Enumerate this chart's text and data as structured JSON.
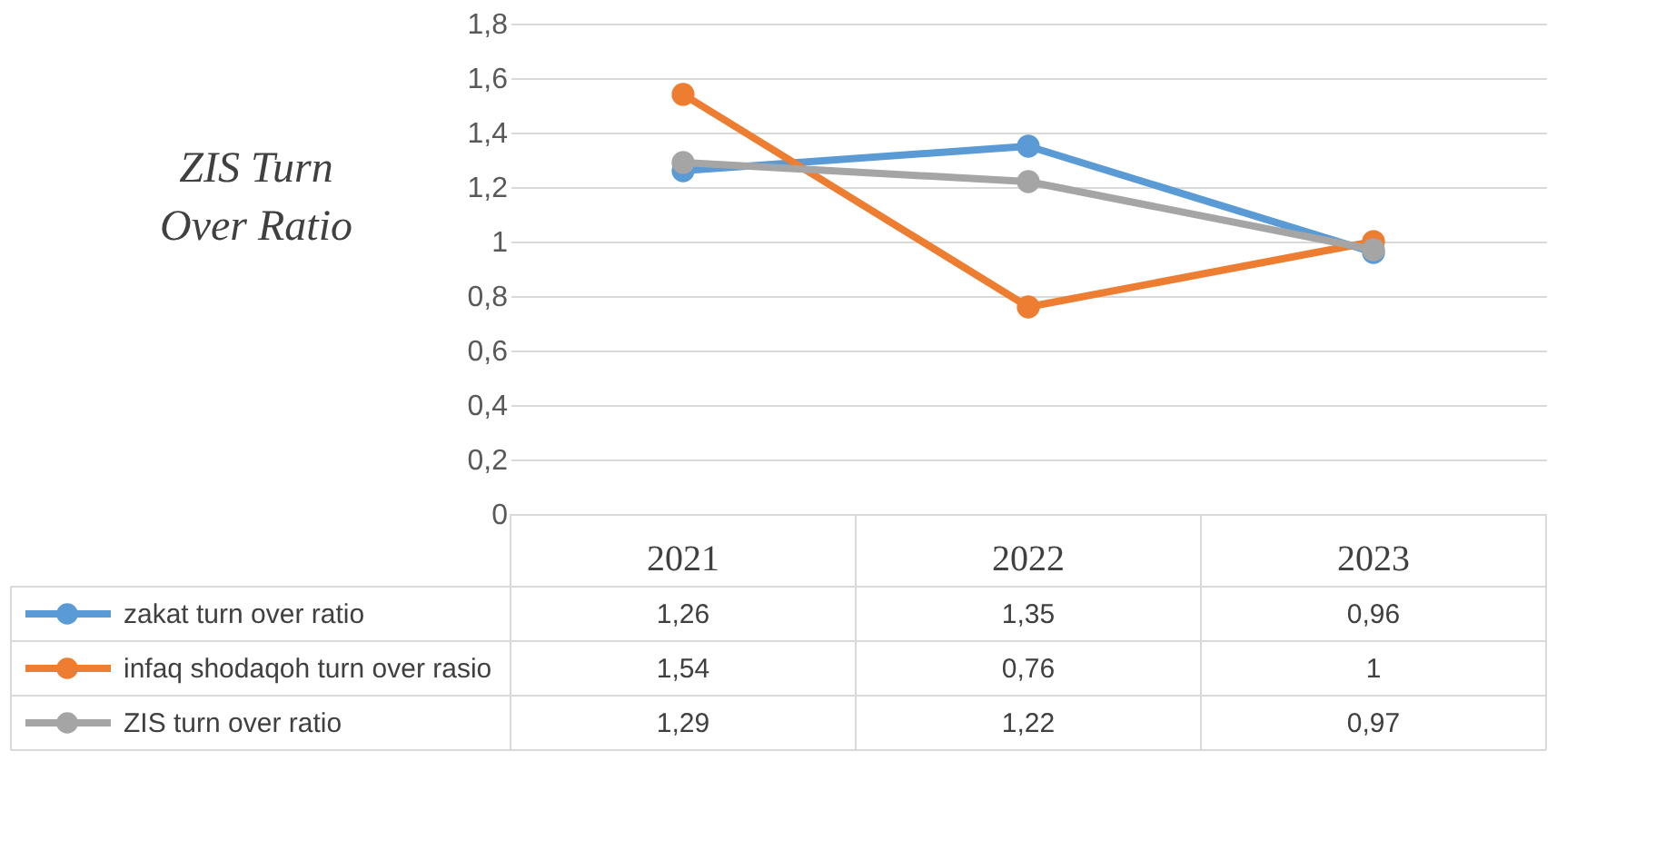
{
  "chart_data": {
    "type": "line",
    "title": "ZIS Turn Over Ratio",
    "categories": [
      "2021",
      "2022",
      "2023"
    ],
    "series": [
      {
        "name": "zakat turn over ratio",
        "color": "#5b9bd5",
        "values": [
          1.26,
          1.35,
          0.96
        ],
        "value_labels": [
          "1,26",
          "1,35",
          "0,96"
        ]
      },
      {
        "name": "infaq shodaqoh turn over rasio",
        "color": "#ed7d31",
        "values": [
          1.54,
          0.76,
          1
        ],
        "value_labels": [
          "1,54",
          "0,76",
          "1"
        ]
      },
      {
        "name": "ZIS turn over ratio",
        "color": "#a5a5a5",
        "values": [
          1.29,
          1.22,
          0.97
        ],
        "value_labels": [
          "1,29",
          "1,22",
          "0,97"
        ]
      }
    ],
    "ylim": [
      0,
      1.8
    ],
    "yticks": [
      {
        "value": 0,
        "label": "0"
      },
      {
        "value": 0.2,
        "label": "0,2"
      },
      {
        "value": 0.4,
        "label": "0,4"
      },
      {
        "value": 0.6,
        "label": "0,6"
      },
      {
        "value": 0.8,
        "label": "0,8"
      },
      {
        "value": 1,
        "label": "1"
      },
      {
        "value": 1.2,
        "label": "1,2"
      },
      {
        "value": 1.4,
        "label": "1,4"
      },
      {
        "value": 1.6,
        "label": "1,6"
      },
      {
        "value": 1.8,
        "label": "1,8"
      }
    ],
    "grid": "y",
    "marker": "circle",
    "legend": "bottom",
    "tick_labels": "y"
  }
}
